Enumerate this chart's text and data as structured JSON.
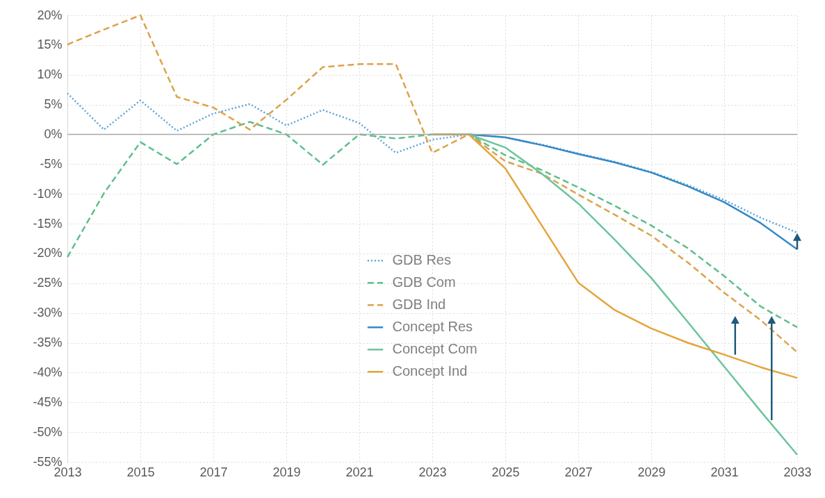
{
  "chart_data": {
    "type": "line",
    "xlim": [
      2013,
      2033
    ],
    "xticks": [
      2013,
      2015,
      2017,
      2019,
      2021,
      2023,
      2025,
      2027,
      2029,
      2031,
      2033
    ],
    "ylim": [
      -55,
      20
    ],
    "yticks": [
      {
        "value": 20,
        "label": "20%"
      },
      {
        "value": 15,
        "label": "15%"
      },
      {
        "value": 10,
        "label": "10%"
      },
      {
        "value": 5,
        "label": "5%"
      },
      {
        "value": 0,
        "label": "0%"
      },
      {
        "value": -5,
        "label": "-5%"
      },
      {
        "value": -10,
        "label": "-10%"
      },
      {
        "value": -15,
        "label": "-15%"
      },
      {
        "value": -20,
        "label": "-20%"
      },
      {
        "value": -25,
        "label": "-25%"
      },
      {
        "value": -30,
        "label": "-30%"
      },
      {
        "value": -35,
        "label": "-35%"
      },
      {
        "value": -40,
        "label": "-40%"
      },
      {
        "value": -45,
        "label": "-45%"
      },
      {
        "value": -50,
        "label": "-50%"
      },
      {
        "value": -55,
        "label": "-55%"
      }
    ],
    "grid": true,
    "legend": "bottom",
    "marker": "none",
    "ref_lines": [
      {
        "axis": "y",
        "value": 0,
        "color": "#a6a6a6"
      }
    ],
    "series": [
      {
        "name": "GDB Res",
        "color": "#5ba3d6",
        "line_style": "dotted",
        "x": [
          2013,
          2014,
          2015,
          2016,
          2017,
          2018,
          2019,
          2020,
          2021,
          2022,
          2023,
          2024,
          2025,
          2026,
          2027,
          2028,
          2029,
          2030,
          2031,
          2032,
          2033
        ],
        "values": [
          6.9,
          0.8,
          5.7,
          0.6,
          3.5,
          5.1,
          1.5,
          4.1,
          1.9,
          -3.1,
          -0.9,
          0,
          -0.5,
          -1.7,
          -3.2,
          -4.6,
          -6.3,
          -8.5,
          -11,
          -14,
          -16.5
        ]
      },
      {
        "name": "GDB Com",
        "color": "#5cbf8c",
        "line_style": "dashed",
        "x": [
          2013,
          2014,
          2015,
          2016,
          2017,
          2018,
          2019,
          2020,
          2021,
          2022,
          2023,
          2024,
          2025,
          2026,
          2027,
          2028,
          2029,
          2030,
          2031,
          2032,
          2033
        ],
        "values": [
          -20.6,
          -9.9,
          -1.3,
          -5,
          0,
          2.1,
          0,
          -5.1,
          0,
          -0.7,
          0,
          0,
          -3.5,
          -6,
          -8.9,
          -12,
          -15.3,
          -19.1,
          -23.8,
          -28.9,
          -32.4
        ]
      },
      {
        "name": "GDB Ind",
        "color": "#dca24a",
        "line_style": "dashed",
        "x": [
          2013,
          2014,
          2015,
          2016,
          2017,
          2018,
          2019,
          2020,
          2021,
          2022,
          2023,
          2024,
          2025,
          2026,
          2027,
          2028,
          2029,
          2030,
          2031,
          2032,
          2033
        ],
        "values": [
          15.1,
          17.6,
          20,
          6.3,
          4.5,
          0.8,
          5.8,
          11.3,
          11.8,
          11.8,
          -3.1,
          0,
          -4.5,
          -6.6,
          -10.1,
          -13.5,
          -17,
          -21.5,
          -26.6,
          -31.2,
          -36.6
        ]
      },
      {
        "name": "Concept Res",
        "color": "#3389c6",
        "line_style": "solid",
        "x": [
          2023,
          2024,
          2025,
          2026,
          2027,
          2028,
          2029,
          2030,
          2031,
          2032,
          2033
        ],
        "values": [
          0,
          0,
          -0.5,
          -1.8,
          -3.3,
          -4.7,
          -6.4,
          -8.7,
          -11.4,
          -14.9,
          -19.3
        ]
      },
      {
        "name": "Concept Com",
        "color": "#6cc49c",
        "line_style": "solid",
        "x": [
          2023,
          2024,
          2025,
          2026,
          2027,
          2028,
          2029,
          2030,
          2031,
          2032,
          2033
        ],
        "values": [
          0,
          0,
          -2.2,
          -6.6,
          -11.6,
          -17.7,
          -24.1,
          -31.5,
          -39,
          -46.5,
          -53.8
        ]
      },
      {
        "name": "Concept Ind",
        "color": "#e3a53c",
        "line_style": "solid",
        "x": [
          2023,
          2024,
          2025,
          2026,
          2027,
          2028,
          2029,
          2030,
          2031,
          2032,
          2033
        ],
        "values": [
          0,
          0,
          -5.7,
          -15.3,
          -24.9,
          -29.5,
          -32.6,
          -35,
          -37,
          -39.1,
          -40.9
        ]
      }
    ]
  }
}
